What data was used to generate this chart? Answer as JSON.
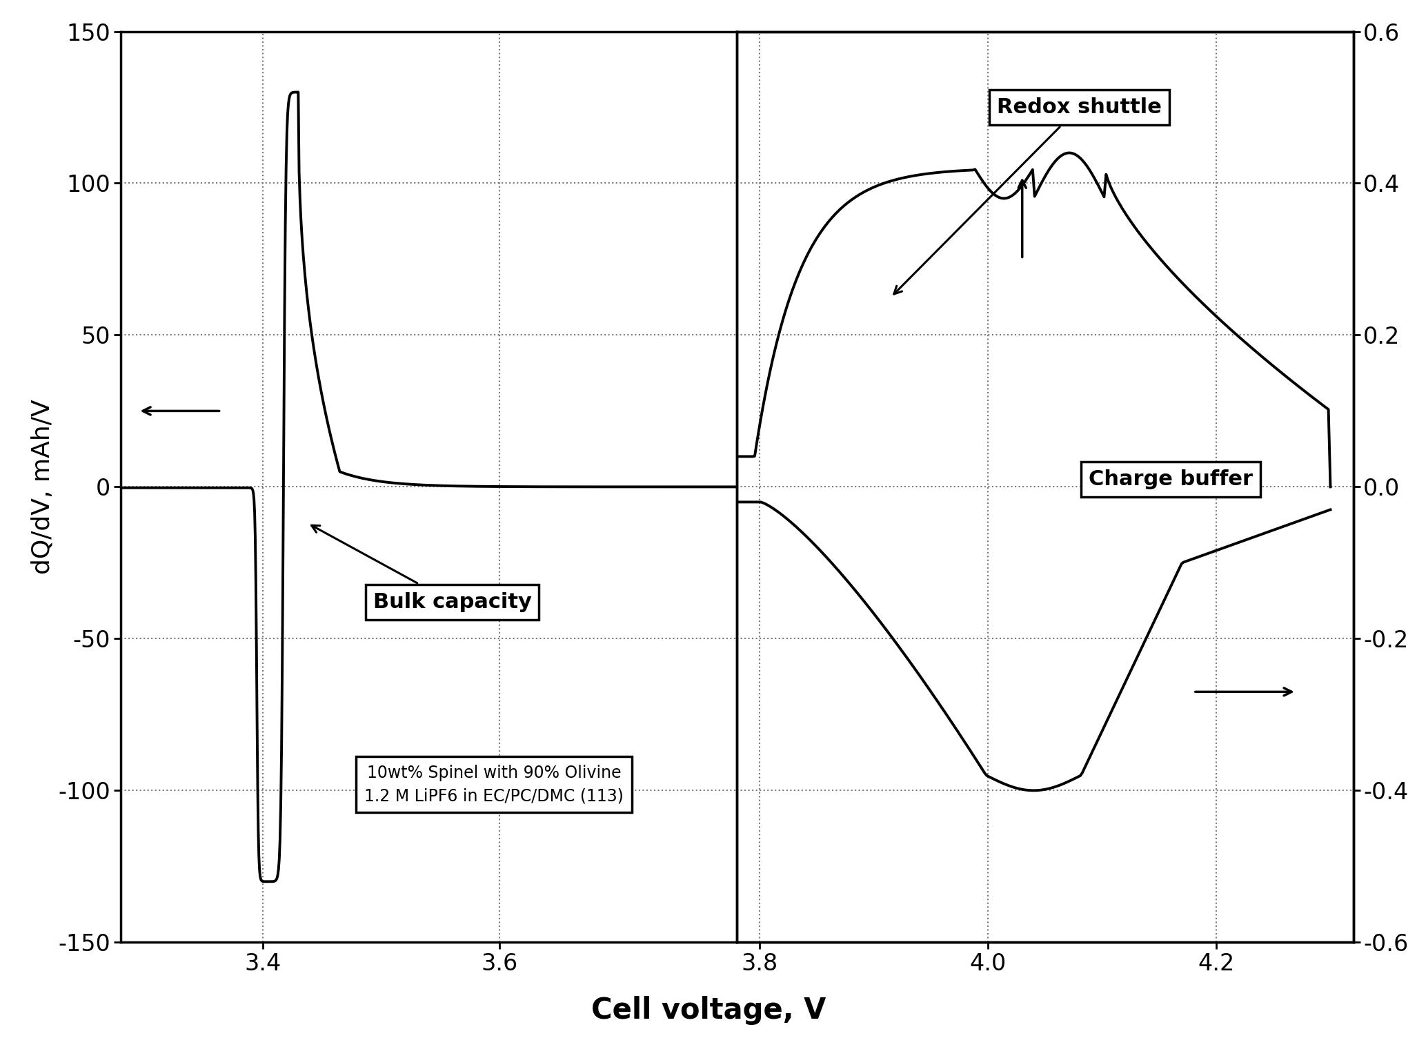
{
  "title": "",
  "xlabel": "Cell voltage, V",
  "ylabel_left": "dQ/dV, mAh/V",
  "ylim_left": [
    -150,
    150
  ],
  "ylim_right": [
    -0.6,
    0.6
  ],
  "xlim_left": [
    3.28,
    3.8
  ],
  "xlim_right": [
    3.78,
    4.32
  ],
  "yticks_left": [
    -150,
    -100,
    -50,
    0,
    50,
    100,
    150
  ],
  "yticks_right": [
    -0.6,
    -0.4,
    -0.2,
    0.0,
    0.2,
    0.4,
    0.6
  ],
  "xticks_left": [
    3.4,
    3.6
  ],
  "xticks_left_labels": [
    "3.4",
    "3.6"
  ],
  "xticks_right": [
    3.8,
    4.0,
    4.2
  ],
  "xticks_right_labels": [
    "3.8",
    "4.0",
    "4.2"
  ],
  "background_color": "#ffffff",
  "line_color": "#000000",
  "grid_color": "#777777",
  "note_text": "10wt% Spinel with 90% Olivine\n1.2 M LiPF6 in EC/PC/DMC (113)",
  "scale": 250.0
}
